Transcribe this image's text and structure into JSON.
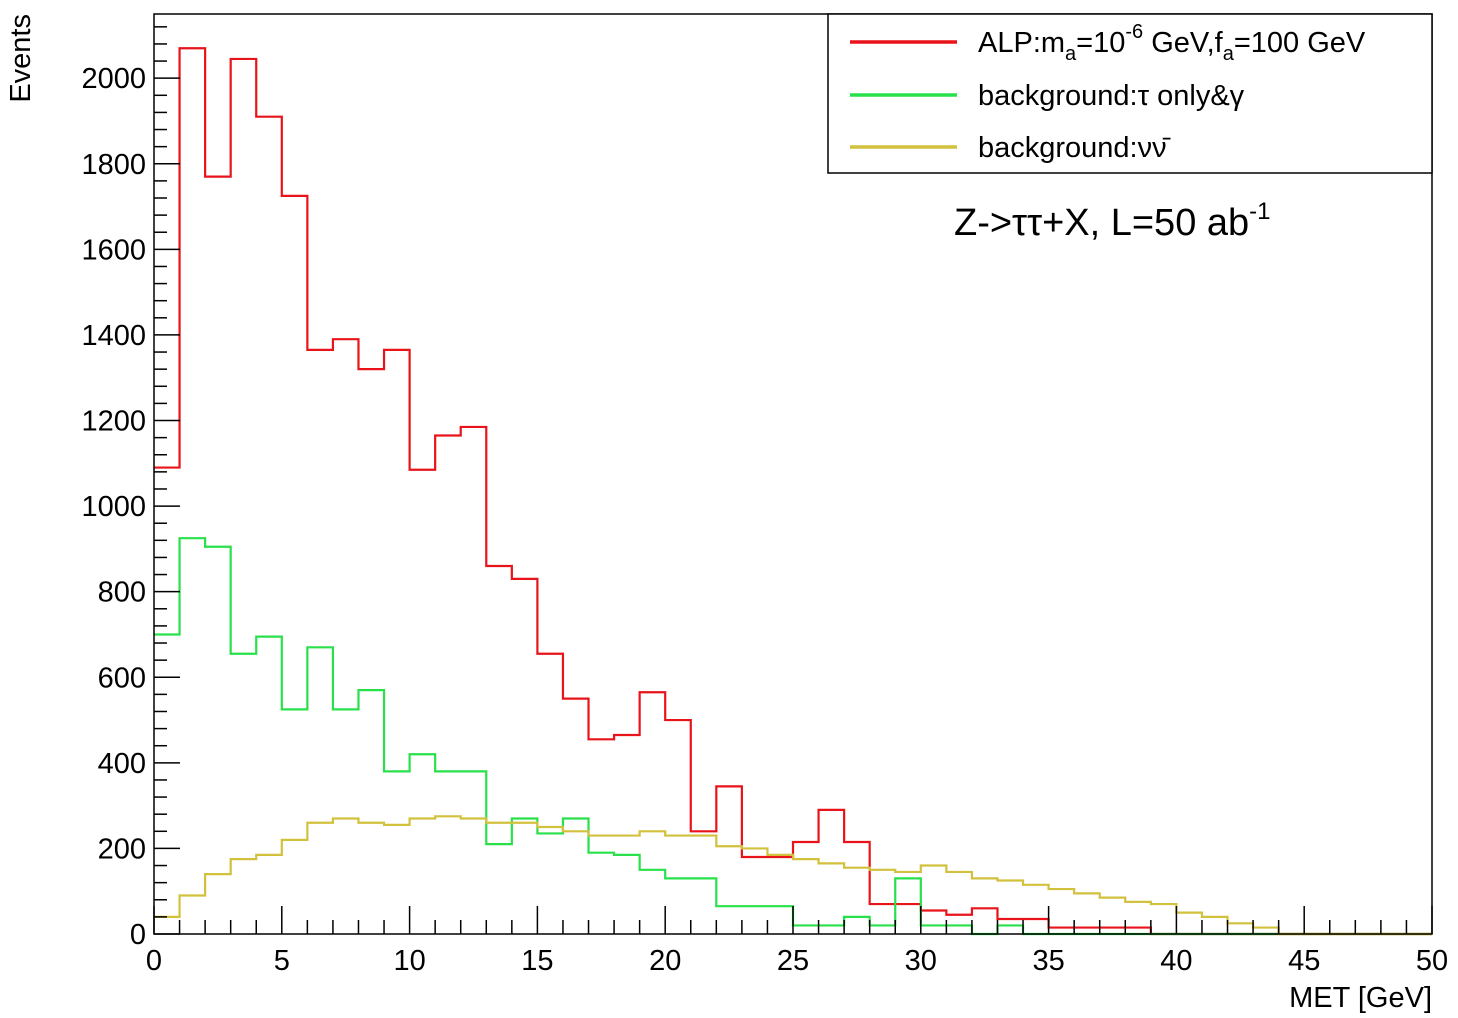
{
  "chart_data": {
    "type": "histogram",
    "xlabel": "MET [GeV]",
    "ylabel": "Events",
    "xlim": [
      0,
      50
    ],
    "ylim": [
      0,
      2150
    ],
    "bin_width": 1,
    "bin_edges_start": 0,
    "x_ticks": [
      0,
      5,
      10,
      15,
      20,
      25,
      30,
      35,
      40,
      45,
      50
    ],
    "x_tick_labels": [
      "0",
      "5",
      "10",
      "15",
      "20",
      "25",
      "30",
      "35",
      "40",
      "45",
      "50"
    ],
    "y_ticks": [
      0,
      200,
      400,
      600,
      800,
      1000,
      1200,
      1400,
      1600,
      1800,
      2000
    ],
    "y_tick_labels": [
      "0",
      "200",
      "400",
      "600",
      "800",
      "1000",
      "1200",
      "1400",
      "1600",
      "1800",
      "2000"
    ],
    "grid": false,
    "legend_position": "top-right",
    "annotation": {
      "text": "Z->ττ+X, L=50 ab",
      "superscript": "-1"
    },
    "series": [
      {
        "name": "ALP:m",
        "name_parts": {
          "a": "ALP:m",
          "b": "a",
          "c": "=10",
          "d": "-6",
          "e": " GeV,f",
          "f": "a",
          "g": "=100 GeV"
        },
        "color": "#e8141a",
        "values": [
          1090,
          2070,
          1770,
          2045,
          1910,
          1725,
          1365,
          1390,
          1320,
          1365,
          1085,
          1165,
          1185,
          860,
          830,
          655,
          550,
          455,
          465,
          565,
          500,
          240,
          345,
          180,
          180,
          215,
          290,
          215,
          70,
          70,
          55,
          45,
          60,
          35,
          35,
          15,
          15,
          15,
          15,
          0,
          0,
          0,
          0,
          0,
          0,
          0,
          0,
          0,
          0,
          0
        ]
      },
      {
        "name": "background:τ only&γ",
        "color": "#28e04a",
        "values": [
          700,
          925,
          905,
          655,
          695,
          525,
          670,
          525,
          570,
          380,
          420,
          380,
          380,
          210,
          270,
          235,
          270,
          190,
          185,
          150,
          130,
          130,
          65,
          65,
          65,
          20,
          20,
          40,
          20,
          130,
          20,
          20,
          0,
          20,
          0,
          0,
          0,
          0,
          0,
          0,
          0,
          0,
          0,
          0,
          0,
          0,
          0,
          0,
          0,
          0
        ]
      },
      {
        "name": "background:νν̄",
        "color": "#d2c13c",
        "values": [
          40,
          90,
          140,
          175,
          185,
          220,
          260,
          270,
          260,
          255,
          270,
          275,
          270,
          260,
          260,
          250,
          240,
          230,
          230,
          240,
          230,
          230,
          205,
          200,
          185,
          175,
          165,
          155,
          150,
          145,
          160,
          145,
          130,
          125,
          115,
          105,
          95,
          85,
          75,
          70,
          50,
          40,
          25,
          15,
          0,
          0,
          0,
          0,
          0,
          0
        ]
      }
    ]
  }
}
